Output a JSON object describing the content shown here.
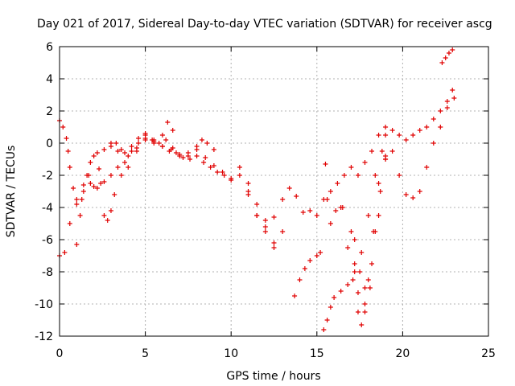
{
  "chart_data": {
    "type": "scatter",
    "title": "Day 021 of 2017, Sidereal Day-to-day VTEC variation (SDTVAR) for receiver ascg",
    "xlabel": "GPS time / hours",
    "ylabel": "SDTVAR / TECUs",
    "xlim": [
      0,
      25
    ],
    "ylim": [
      -12,
      6
    ],
    "xticks": [
      "0",
      "5",
      "10",
      "15",
      "20",
      "25"
    ],
    "yticks": [
      "-12",
      "-10",
      "-8",
      "-6",
      "-4",
      "-2",
      "0",
      "2",
      "4",
      "6"
    ],
    "grid": true,
    "marker": "+",
    "color": "#e00000",
    "series": [
      {
        "name": "s1",
        "x": [
          0.0,
          0.2,
          0.4,
          0.5,
          0.6,
          0.8,
          1.0,
          1.3,
          1.7,
          2.0,
          2.3,
          2.6,
          3.0,
          3.4,
          3.8,
          4.2,
          4.6,
          5.0,
          5.4,
          5.8,
          6.2,
          6.6,
          7.0,
          7.5,
          8.0,
          8.5,
          9.0,
          9.5,
          10.0,
          10.5,
          11.0,
          11.5,
          12.0,
          12.5
        ],
        "y": [
          1.4,
          1.0,
          0.3,
          -0.5,
          -1.5,
          -2.8,
          -3.8,
          -3.5,
          -2.0,
          -2.7,
          -1.6,
          -0.4,
          0.0,
          -0.5,
          -0.6,
          -0.2,
          0.3,
          0.5,
          0.2,
          0.0,
          0.2,
          -0.3,
          -0.8,
          -0.6,
          -0.4,
          -0.9,
          -1.4,
          -1.8,
          -2.2,
          -2.0,
          -3.2,
          -4.5,
          -5.5,
          -6.5
        ]
      },
      {
        "name": "s2",
        "x": [
          0.0,
          0.3,
          0.6,
          1.0,
          1.4,
          1.8,
          2.2,
          2.6,
          3.0,
          3.4,
          3.8,
          4.2,
          4.6,
          5.0,
          5.5,
          6.0,
          6.4,
          6.8,
          7.2,
          7.6,
          8.0,
          8.4,
          8.8,
          9.2,
          9.6,
          10.0
        ],
        "y": [
          -7.0,
          -6.8,
          -5.0,
          -3.5,
          -2.6,
          -2.5,
          -2.8,
          -2.4,
          -2.0,
          -1.5,
          -1.2,
          -0.5,
          0.0,
          0.3,
          0.1,
          -0.2,
          -0.5,
          -0.6,
          -0.9,
          -1.0,
          -0.8,
          -1.2,
          -1.5,
          -1.8,
          -2.0,
          -2.3
        ]
      },
      {
        "name": "s3",
        "x": [
          1.0,
          1.2,
          1.4,
          1.6,
          1.8,
          2.0,
          2.2,
          2.4,
          2.6,
          2.8,
          3.0,
          3.2,
          3.6,
          4.0,
          4.5,
          5.0,
          5.5,
          6.0,
          6.3,
          6.6
        ],
        "y": [
          -6.3,
          -4.5,
          -3.0,
          -2.0,
          -1.2,
          -0.8,
          -0.6,
          -2.5,
          -4.5,
          -4.8,
          -4.2,
          -3.2,
          -2.0,
          -1.5,
          -0.3,
          0.2,
          0.0,
          0.5,
          1.3,
          0.8
        ]
      },
      {
        "name": "s4",
        "x": [
          3.0,
          3.3,
          3.6,
          4.0,
          4.5,
          5.0,
          5.5,
          6.0,
          6.5,
          7.0,
          7.5,
          8.0,
          8.3,
          8.6,
          9.0
        ],
        "y": [
          -0.2,
          0.0,
          -0.4,
          -0.8,
          -0.5,
          0.6,
          0.2,
          -0.2,
          -0.4,
          -0.7,
          -0.8,
          -0.2,
          0.2,
          0.0,
          -0.4
        ]
      },
      {
        "name": "s5",
        "x": [
          10.5,
          11.0,
          11.5,
          12.0,
          12.5,
          13.0,
          13.4,
          13.8,
          14.2,
          14.6,
          15.0,
          15.4,
          15.8,
          16.2,
          16.6,
          17.0,
          17.4,
          17.8,
          18.2,
          18.6,
          19.0,
          19.4,
          19.8,
          20.2,
          20.6,
          21.0,
          21.4,
          21.8,
          22.2,
          22.6,
          22.9
        ],
        "y": [
          -1.5,
          -3.0,
          -4.5,
          -4.8,
          -4.6,
          -3.5,
          -2.8,
          -3.3,
          -4.3,
          -4.2,
          -4.5,
          -3.5,
          -3.0,
          -2.5,
          -2.0,
          -1.5,
          -2.0,
          -1.2,
          -0.5,
          0.5,
          1.0,
          0.8,
          0.5,
          0.2,
          0.5,
          0.8,
          1.0,
          1.5,
          2.0,
          2.6,
          3.3
        ]
      },
      {
        "name": "s6",
        "x": [
          11.0,
          11.5,
          12.0,
          12.5,
          13.0
        ],
        "y": [
          -2.5,
          -3.8,
          -5.2,
          -6.2,
          -5.5
        ]
      },
      {
        "name": "s7",
        "x": [
          13.7,
          14.0,
          14.3,
          14.6,
          15.0,
          15.2
        ],
        "y": [
          -9.5,
          -8.5,
          -7.8,
          -7.3,
          -7.0,
          -6.8
        ]
      },
      {
        "name": "s8",
        "x": [
          15.4,
          15.6,
          15.8,
          16.0,
          16.4,
          16.8,
          17.2,
          17.6,
          18.0,
          18.4,
          18.8,
          19.0
        ],
        "y": [
          -11.6,
          -11.0,
          -10.2,
          -9.6,
          -9.2,
          -8.8,
          -8.0,
          -6.8,
          -4.5,
          -2.0,
          -0.5,
          0.5
        ]
      },
      {
        "name": "s9",
        "x": [
          15.5,
          15.6,
          15.8,
          16.1,
          16.5,
          17.0,
          17.2,
          17.4,
          17.6,
          17.8,
          18.0,
          18.3,
          18.6,
          19.0
        ],
        "y": [
          -1.3,
          -3.5,
          -5.0,
          -4.2,
          -4.0,
          -5.5,
          -7.5,
          -10.5,
          -11.3,
          -10.5,
          -8.5,
          -5.5,
          -2.5,
          -0.8
        ]
      },
      {
        "name": "s10",
        "x": [
          16.4,
          16.8,
          17.1,
          17.4,
          17.8,
          18.2,
          18.6,
          19.0
        ],
        "y": [
          -4.0,
          -6.5,
          -8.5,
          -9.3,
          -9.0,
          -7.5,
          -4.5,
          -1.0
        ]
      },
      {
        "name": "s11",
        "x": [
          17.2,
          17.5,
          17.8,
          18.1,
          18.4,
          18.7,
          19.0,
          19.4,
          19.8,
          20.2,
          20.6,
          21.0,
          21.4,
          21.8,
          22.2,
          22.6,
          23.0
        ],
        "y": [
          -6.0,
          -8.0,
          -10.0,
          -9.0,
          -5.5,
          -3.0,
          -1.0,
          -0.5,
          -2.0,
          -3.2,
          -3.4,
          -3.0,
          -1.5,
          0.0,
          1.0,
          2.2,
          2.8
        ]
      },
      {
        "name": "s12",
        "x": [
          22.3,
          22.5,
          22.7,
          22.9
        ],
        "y": [
          5.0,
          5.3,
          5.6,
          5.8
        ]
      }
    ]
  }
}
